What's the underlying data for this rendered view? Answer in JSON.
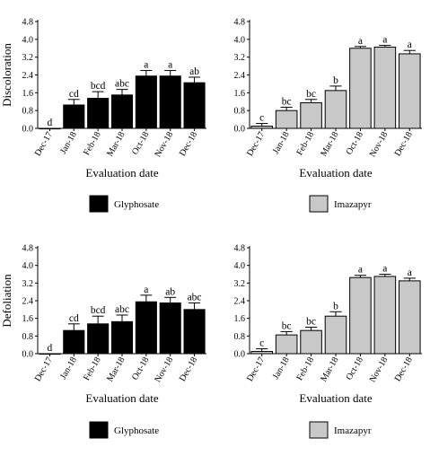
{
  "chart_data": [
    {
      "type": "bar",
      "panel": "top-left",
      "ylabel": "Discoloration",
      "xlabel": "Evaluation date",
      "categories": [
        "Dec-17",
        "Jan-18",
        "Feb-18",
        "Mar-18",
        "Oct-18",
        "Nov-18",
        "Dec-18"
      ],
      "ylim": [
        0,
        4.8
      ],
      "yticks": [
        "0.0",
        "0.8",
        "1.6",
        "2.4",
        "3.2",
        "4.0",
        "4.8"
      ],
      "bar_color": "#000000",
      "series": [
        {
          "name": "Glyphosate",
          "values": [
            0.0,
            1.05,
            1.35,
            1.5,
            2.35,
            2.35,
            2.05
          ],
          "errors": [
            0.0,
            0.25,
            0.3,
            0.25,
            0.25,
            0.25,
            0.25
          ],
          "letters": [
            "d",
            "cd",
            "bcd",
            "abc",
            "a",
            "a",
            "ab"
          ]
        }
      ],
      "legend": {
        "label": "Glyphosate",
        "swatch": "#000000",
        "placement": "bottom"
      }
    },
    {
      "type": "bar",
      "panel": "top-right",
      "ylabel": "",
      "xlabel": "Evaluation date",
      "categories": [
        "Dec-17",
        "Jan-18",
        "Feb-18",
        "Mar-18",
        "Oct-18",
        "Nov-18",
        "Dec-18"
      ],
      "ylim": [
        0,
        4.8
      ],
      "yticks": [
        "0.0",
        "0.8",
        "1.6",
        "2.4",
        "3.2",
        "4.0",
        "4.8"
      ],
      "bar_color": "#c8c8c8",
      "series": [
        {
          "name": "Imazapyr",
          "values": [
            0.1,
            0.8,
            1.15,
            1.7,
            3.6,
            3.65,
            3.35
          ],
          "errors": [
            0.12,
            0.15,
            0.15,
            0.2,
            0.08,
            0.08,
            0.15
          ],
          "letters": [
            "c",
            "bc",
            "bc",
            "b",
            "a",
            "a",
            "a"
          ]
        }
      ],
      "legend": {
        "label": "Imazapyr",
        "swatch": "#c8c8c8",
        "placement": "bottom"
      }
    },
    {
      "type": "bar",
      "panel": "bottom-left",
      "ylabel": "Defoliation",
      "xlabel": "Evaluation date",
      "categories": [
        "Dec-17",
        "Jan-18",
        "Feb-18",
        "Mar-18",
        "Oct-18",
        "Nov-18",
        "Dec-18"
      ],
      "ylim": [
        0,
        4.8
      ],
      "yticks": [
        "0.0",
        "0.8",
        "1.6",
        "2.4",
        "3.2",
        "4.0",
        "4.8"
      ],
      "bar_color": "#000000",
      "series": [
        {
          "name": "Glyphosate",
          "values": [
            0.0,
            1.05,
            1.35,
            1.45,
            2.35,
            2.3,
            2.0
          ],
          "errors": [
            0.0,
            0.3,
            0.35,
            0.3,
            0.3,
            0.25,
            0.3
          ],
          "letters": [
            "d",
            "cd",
            "bcd",
            "abc",
            "a",
            "ab",
            "abc"
          ]
        }
      ],
      "legend": {
        "label": "Glyphosate",
        "swatch": "#000000",
        "placement": "bottom"
      }
    },
    {
      "type": "bar",
      "panel": "bottom-right",
      "ylabel": "",
      "xlabel": "Evaluation date",
      "categories": [
        "Dec-17",
        "Jan-18",
        "Feb-18",
        "Mar-18",
        "Oct-18",
        "Nov-18",
        "Dec-18"
      ],
      "ylim": [
        0,
        4.8
      ],
      "yticks": [
        "0.0",
        "0.8",
        "1.6",
        "2.4",
        "3.2",
        "4.0",
        "4.8"
      ],
      "bar_color": "#c8c8c8",
      "series": [
        {
          "name": "Imazapyr",
          "values": [
            0.1,
            0.85,
            1.05,
            1.7,
            3.45,
            3.5,
            3.3
          ],
          "errors": [
            0.12,
            0.15,
            0.15,
            0.2,
            0.1,
            0.1,
            0.12
          ],
          "letters": [
            "c",
            "bc",
            "bc",
            "b",
            "a",
            "a",
            "a"
          ]
        }
      ],
      "legend": {
        "label": "Imazapyr",
        "swatch": "#c8c8c8",
        "placement": "bottom"
      }
    }
  ]
}
